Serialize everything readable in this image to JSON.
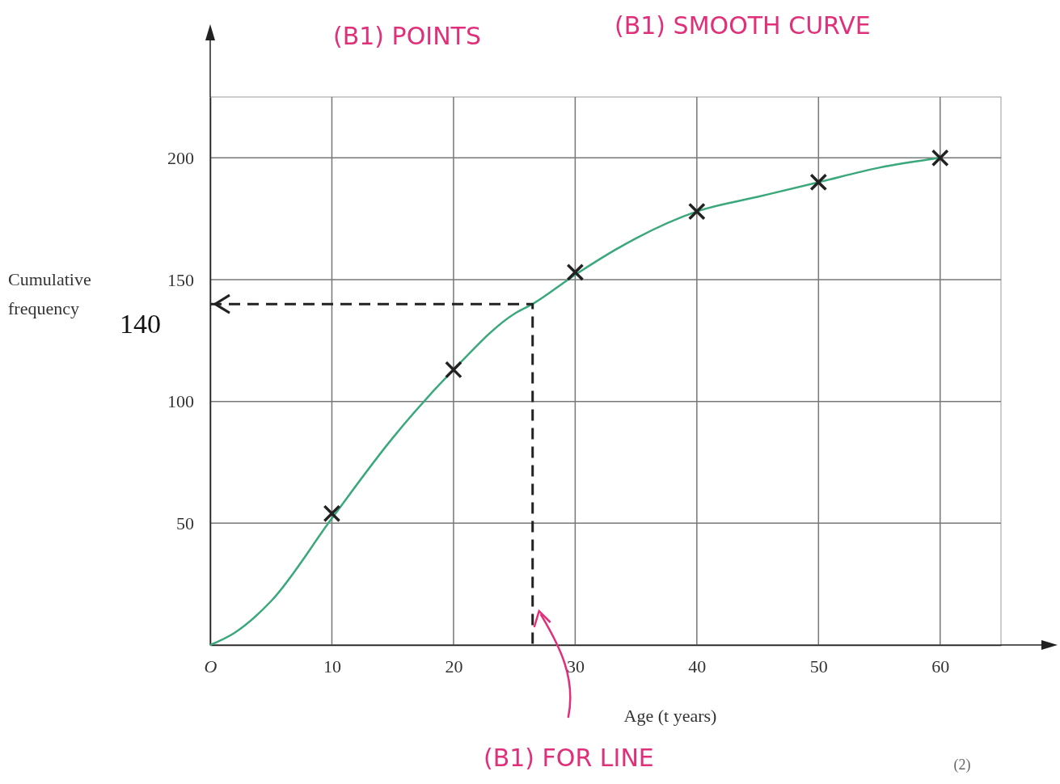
{
  "chart_data": {
    "type": "line",
    "xlabel": "Age (t years)",
    "ylabel": "Cumulative frequency",
    "xlim": [
      0,
      65
    ],
    "ylim": [
      0,
      225
    ],
    "xticks": [
      {
        "value": 0,
        "label": "O"
      },
      10,
      20,
      30,
      40,
      50,
      60
    ],
    "yticks": [
      {
        "value": 0,
        "label": null
      },
      50,
      100,
      150,
      200
    ],
    "grid": true,
    "series": [
      {
        "color": "#3aa87a",
        "x": [
          0,
          2,
          5,
          10,
          15,
          20,
          25,
          26.5,
          30,
          35,
          40,
          45,
          50,
          55,
          60
        ],
        "values": [
          0,
          5,
          18,
          52,
          85,
          113,
          136,
          140,
          152,
          167,
          178,
          184,
          190,
          196,
          200
        ]
      },
      {
        "type": "scatter",
        "color": "#222222",
        "marker": "cross",
        "x": [
          10,
          20,
          30,
          40,
          50,
          60
        ],
        "values": [
          54,
          113,
          153,
          178,
          190,
          200
        ]
      },
      {
        "type": "line",
        "color": "#222222",
        "line_style": "dashed",
        "x": [
          0,
          26.5,
          26.5
        ],
        "values": [
          140,
          140,
          0
        ]
      }
    ],
    "annotations": [
      "(B1) POINTS",
      "(B1) SMOOTH CURVE",
      "140",
      "(B1) FOR LINE",
      "(2)"
    ]
  }
}
